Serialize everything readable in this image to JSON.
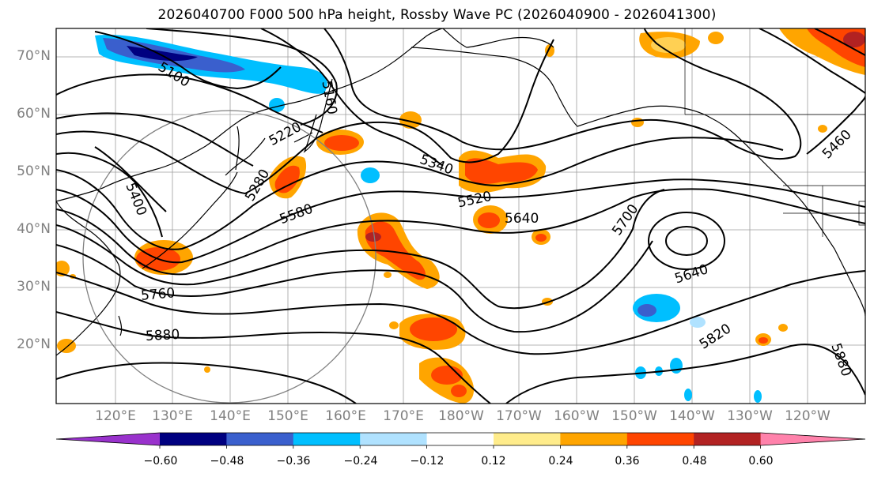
{
  "title": "2026040700 F000 500 hPa height, Rossby Wave PC (2026040900 - 2026041300)",
  "lat_labels": [
    "70°N",
    "60°N",
    "50°N",
    "40°N",
    "30°N",
    "20°N"
  ],
  "lon_labels": [
    "120°E",
    "130°E",
    "140°E",
    "150°E",
    "160°E",
    "170°E",
    "180°W",
    "170°W",
    "160°W",
    "150°W",
    "140°W",
    "130°W",
    "120°W"
  ],
  "contour_labels": [
    "5100",
    "5160",
    "5220",
    "5280",
    "5340",
    "5400",
    "5460",
    "5520",
    "5580",
    "5640",
    "5700",
    "5760",
    "5820",
    "5880",
    "5640"
  ],
  "colorbar": {
    "ticks": [
      "−0.60",
      "−0.48",
      "−0.36",
      "−0.24",
      "−0.12",
      "0.12",
      "0.24",
      "0.36",
      "0.48",
      "0.60"
    ],
    "colors": [
      "#9932CC",
      "#000080",
      "#3A5FCD",
      "#00BFFF",
      "#B0E2FF",
      "#FFFFFF",
      "#FFEC8B",
      "#FFA500",
      "#FF4500",
      "#B22222",
      "#FF82AB"
    ]
  }
}
